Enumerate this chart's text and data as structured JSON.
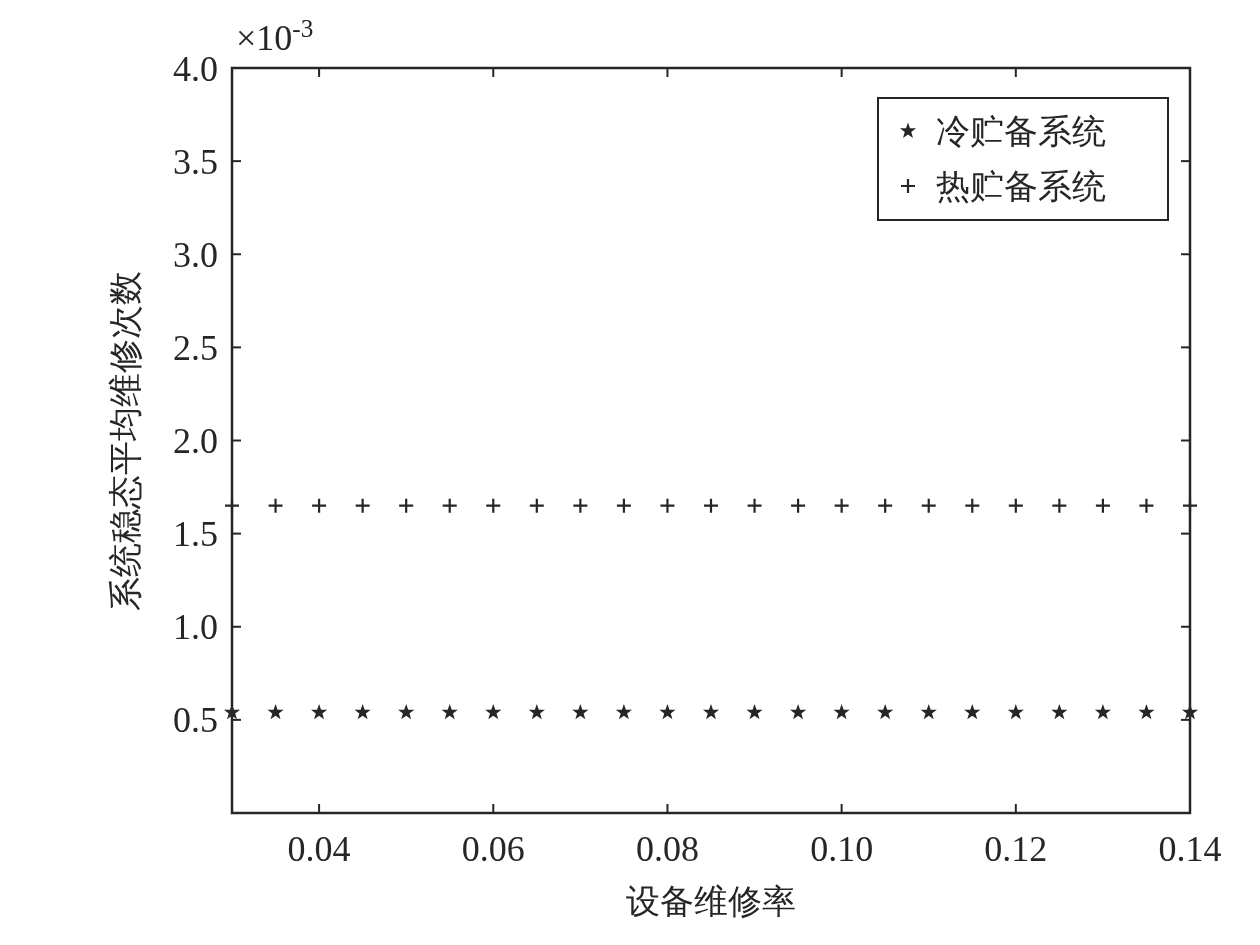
{
  "chart_data": {
    "type": "scatter",
    "xlabel": "设备维修率",
    "ylabel": "系统稳态平均维修次数",
    "annotations": [
      "×10$^{-3}$"
    ],
    "x": [
      0.03,
      0.035,
      0.04,
      0.045,
      0.05,
      0.055,
      0.06,
      0.065,
      0.07,
      0.075,
      0.08,
      0.085,
      0.09,
      0.095,
      0.1,
      0.105,
      0.11,
      0.115,
      0.12,
      0.125,
      0.13,
      0.135,
      0.14
    ],
    "series": [
      {
        "name": "冷贮备系统",
        "color": "#262626",
        "marker": "star",
        "values": [
          0.54,
          0.54,
          0.54,
          0.54,
          0.54,
          0.54,
          0.54,
          0.54,
          0.54,
          0.54,
          0.54,
          0.54,
          0.54,
          0.54,
          0.54,
          0.54,
          0.54,
          0.54,
          0.54,
          0.54,
          0.54,
          0.54,
          0.54
        ]
      },
      {
        "name": "热贮备系统",
        "color": "#262626",
        "marker": "cross",
        "values": [
          1.65,
          1.65,
          1.65,
          1.65,
          1.65,
          1.65,
          1.65,
          1.65,
          1.65,
          1.65,
          1.65,
          1.65,
          1.65,
          1.65,
          1.65,
          1.65,
          1.65,
          1.65,
          1.65,
          1.65,
          1.65,
          1.65,
          1.65
        ]
      }
    ],
    "xlim": [
      0.03,
      0.14
    ],
    "xticks": [
      0.04,
      0.06,
      0.08,
      {
        "value": 0.1,
        "label": "0.10"
      },
      0.12,
      0.14
    ],
    "ylim": [
      0,
      4
    ],
    "yticks": [
      0.5,
      {
        "value": 1,
        "label": "1.0"
      },
      1.5,
      {
        "value": 2,
        "label": "2.0"
      },
      2.5,
      {
        "value": 3,
        "label": "3.0"
      },
      3.5,
      {
        "value": 4,
        "label": "4.0"
      }
    ],
    "legend": "top right",
    "grid": false
  }
}
